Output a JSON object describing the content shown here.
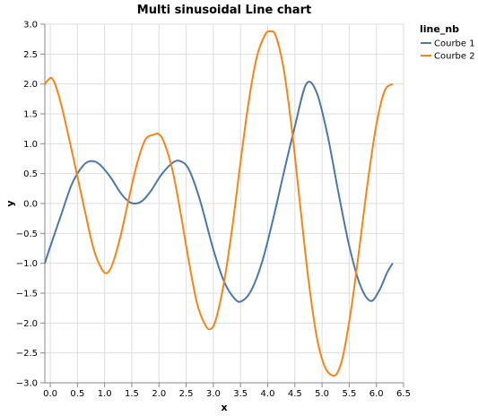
{
  "chart_data": {
    "type": "line",
    "title": "Multi sinusoidal Line chart",
    "xlabel": "x",
    "ylabel": "y",
    "xlim": [
      -0.1,
      6.5
    ],
    "ylim": [
      -3.0,
      3.0
    ],
    "grid": true,
    "x_ticks": [
      "0.0",
      "0.5",
      "1.0",
      "1.5",
      "2.0",
      "2.5",
      "3.0",
      "3.5",
      "4.0",
      "4.5",
      "5.0",
      "5.5",
      "6.0",
      "6.5"
    ],
    "x_tick_values": [
      0,
      0.5,
      1,
      1.5,
      2,
      2.5,
      3,
      3.5,
      4,
      4.5,
      5,
      5.5,
      6,
      6.5
    ],
    "y_ticks": [
      "3.0",
      "2.5",
      "2.0",
      "1.5",
      "1.0",
      "0.5",
      "0.0",
      "−0.5",
      "−1.0",
      "−1.5",
      "−2.0",
      "−2.5",
      "−3.0"
    ],
    "y_tick_values": [
      3,
      2.5,
      2,
      1.5,
      1,
      0.5,
      0,
      -0.5,
      -1,
      -1.5,
      -2,
      -2.5,
      -3
    ],
    "legend": {
      "title": "line_nb",
      "placement": "top-right",
      "entries": [
        "Courbe 1",
        "Courbe 2"
      ]
    },
    "series": [
      {
        "name": "Courbe 1",
        "color": "#4c78a8",
        "x": [
          -0.1,
          0.0,
          0.2,
          0.4,
          0.6,
          0.75,
          0.9,
          1.1,
          1.3,
          1.45,
          1.57,
          1.7,
          1.85,
          2.05,
          2.25,
          2.39,
          2.55,
          2.75,
          3.0,
          3.2,
          3.4,
          3.53,
          3.7,
          3.9,
          4.1,
          4.3,
          4.5,
          4.71,
          4.9,
          5.1,
          5.3,
          5.5,
          5.7,
          5.89,
          6.05,
          6.2,
          6.3
        ],
        "y": [
          -1.0,
          -0.72,
          -0.19,
          0.33,
          0.63,
          0.71,
          0.66,
          0.45,
          0.17,
          0.03,
          0.0,
          0.05,
          0.21,
          0.49,
          0.68,
          0.71,
          0.57,
          0.07,
          -0.77,
          -1.31,
          -1.6,
          -1.63,
          -1.45,
          -0.97,
          -0.26,
          0.53,
          1.29,
          2.0,
          1.86,
          1.15,
          0.19,
          -0.71,
          -1.36,
          -1.63,
          -1.46,
          -1.15,
          -1.0
        ]
      },
      {
        "name": "Courbe 2",
        "color": "#f58518",
        "x": [
          -0.1,
          0.0,
          0.05,
          0.1,
          0.2,
          0.35,
          0.5,
          0.65,
          0.8,
          0.95,
          1.05,
          1.15,
          1.3,
          1.45,
          1.6,
          1.75,
          1.9,
          2.0,
          2.1,
          2.25,
          2.4,
          2.55,
          2.7,
          2.85,
          2.95,
          3.05,
          3.2,
          3.35,
          3.5,
          3.65,
          3.8,
          3.95,
          4.05,
          4.15,
          4.3,
          4.45,
          4.6,
          4.75,
          4.9,
          5.05,
          5.2,
          5.3,
          5.4,
          5.55,
          5.7,
          5.85,
          6.0,
          6.15,
          6.3
        ],
        "y": [
          2.0,
          2.1,
          2.07,
          1.97,
          1.66,
          1.07,
          0.45,
          -0.18,
          -0.77,
          -1.1,
          -1.16,
          -1.0,
          -0.52,
          0.1,
          0.68,
          1.07,
          1.15,
          1.16,
          1.01,
          0.55,
          -0.17,
          -0.97,
          -1.67,
          -2.03,
          -2.1,
          -1.93,
          -1.3,
          -0.39,
          0.69,
          1.7,
          2.45,
          2.82,
          2.88,
          2.8,
          2.22,
          1.2,
          -0.05,
          -1.27,
          -2.22,
          -2.73,
          -2.88,
          -2.8,
          -2.49,
          -1.68,
          -0.65,
          0.42,
          1.32,
          1.88,
          2.0
        ]
      }
    ]
  }
}
